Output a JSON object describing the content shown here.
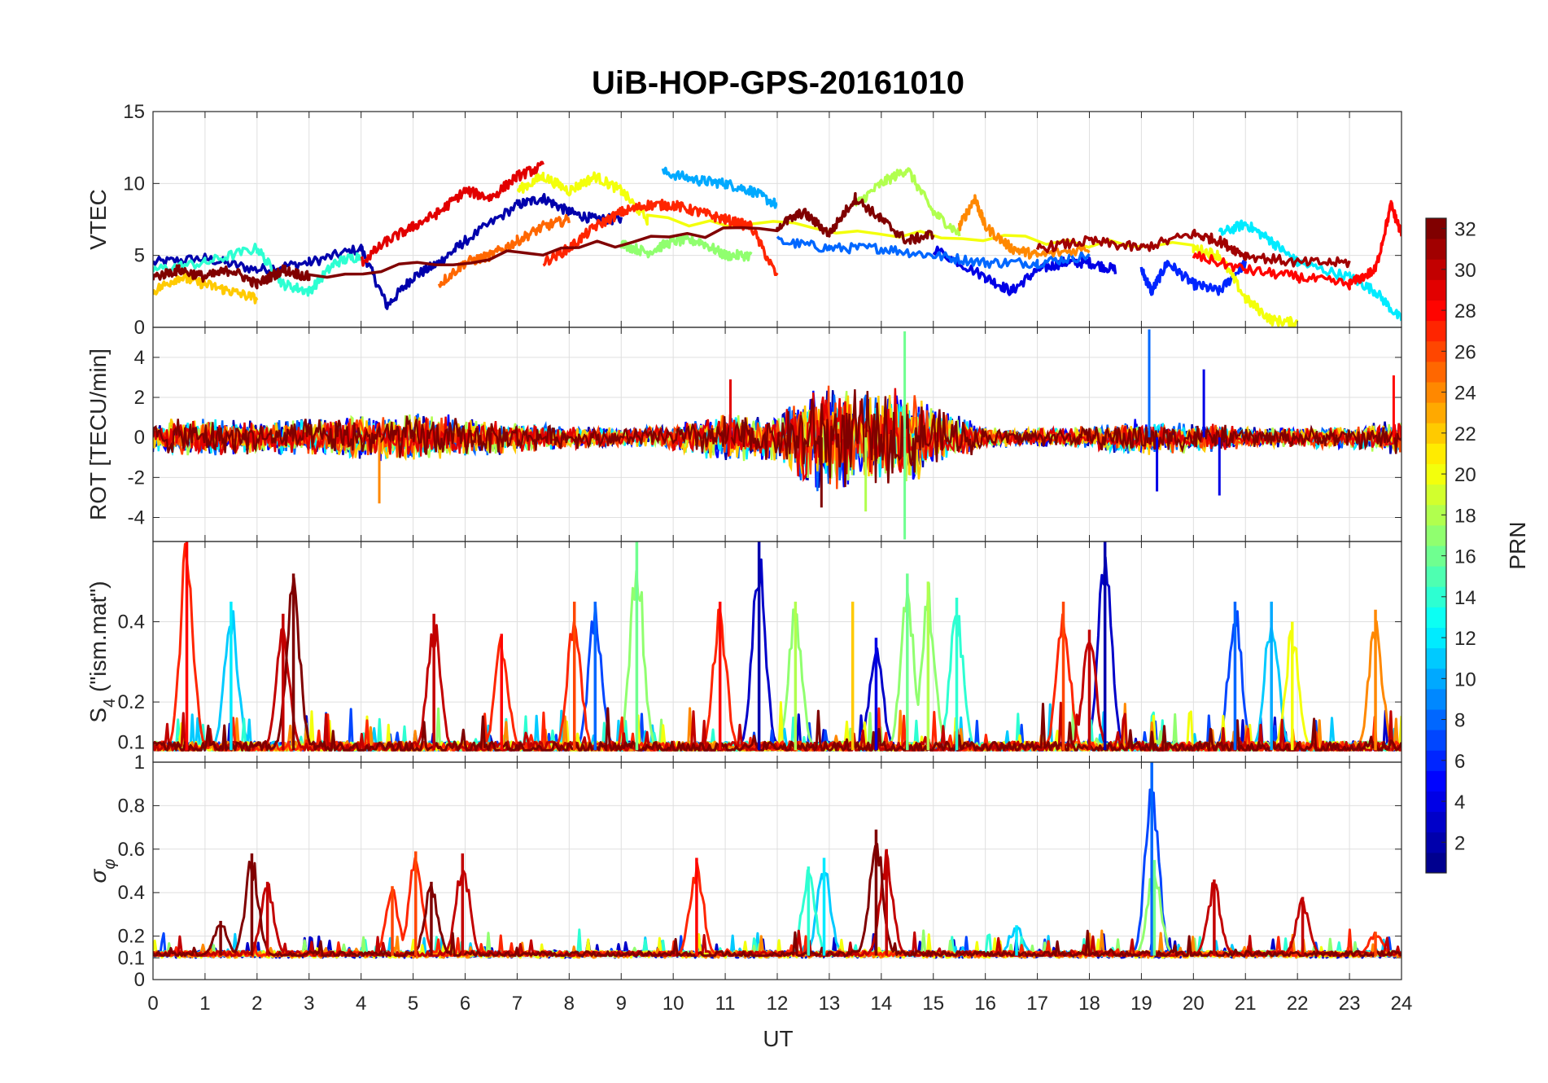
{
  "title": "UiB-HOP-GPS-20161010",
  "chart_data": [
    {
      "type": "line",
      "panel": "VTEC",
      "ylabel": "VTEC",
      "ylim": [
        0,
        15
      ],
      "yticks": [
        0,
        5,
        10,
        15
      ],
      "xlim": [
        0,
        24
      ],
      "series_note_prn_colored": true,
      "series": [
        {
          "prn": 2,
          "x": [
            0,
            1,
            2,
            3,
            4,
            4.5,
            5,
            5.5,
            6,
            7,
            7.5,
            8,
            8.5,
            9
          ],
          "y": [
            4.5,
            4.8,
            4.0,
            4.5,
            5.5,
            1.5,
            3.5,
            4.5,
            6.0,
            8.5,
            9.0,
            8.0,
            7.5,
            7.5
          ]
        },
        {
          "prn": 4,
          "x": [
            15,
            16,
            16.5,
            17,
            17.5,
            18,
            18.5
          ],
          "y": [
            5.5,
            3.5,
            2.5,
            4.0,
            4.5,
            4.5,
            4.0
          ]
        },
        {
          "prn": 6,
          "x": [
            19,
            19.2,
            19.5,
            20,
            20.5,
            21
          ],
          "y": [
            4.0,
            2.5,
            4.5,
            3.0,
            2.5,
            4.5
          ]
        },
        {
          "prn": 8,
          "x": [
            12,
            13,
            14,
            15,
            16,
            17,
            18
          ],
          "y": [
            6.0,
            5.5,
            5.5,
            5.0,
            4.5,
            4.5,
            5.0
          ]
        },
        {
          "prn": 10,
          "x": [
            9.8,
            10.5,
            11,
            11.5,
            12
          ],
          "y": [
            10.8,
            10.2,
            10.0,
            9.5,
            8.5
          ]
        },
        {
          "prn": 12,
          "x": [
            20.5,
            21,
            21.5,
            22,
            23,
            23.5,
            24
          ],
          "y": [
            6.5,
            7.2,
            6.0,
            4.5,
            3.5,
            2.5,
            0.5
          ]
        },
        {
          "prn": 14,
          "x": [
            0,
            1,
            2,
            2.5,
            3,
            3.5,
            4
          ],
          "y": [
            4.0,
            4.5,
            5.5,
            3.0,
            2.5,
            4.5,
            5.0
          ]
        },
        {
          "prn": 17,
          "x": [
            9,
            9.5,
            10,
            10.5,
            11,
            11.5
          ],
          "y": [
            5.8,
            5.2,
            6.0,
            6.0,
            5.0,
            5.0
          ]
        },
        {
          "prn": 18,
          "x": [
            13.5,
            14,
            14.5,
            15,
            15.5
          ],
          "y": [
            8.5,
            10.0,
            11.0,
            8.0,
            6.5
          ]
        },
        {
          "prn": 20,
          "x": [
            7,
            7.5,
            8,
            8.5,
            9,
            9.5,
            20,
            20.5,
            21,
            21.5,
            22
          ],
          "y": [
            9.5,
            10.5,
            9.5,
            10.5,
            9.5,
            7.5,
            5.5,
            5.0,
            2.0,
            0.5,
            0.3
          ]
        },
        {
          "prn": 22,
          "x": [
            0,
            0.5,
            1,
            1.5,
            2
          ],
          "y": [
            2.5,
            3.5,
            3.0,
            2.5,
            2.0
          ]
        },
        {
          "prn": 24,
          "x": [
            15.5,
            15.8,
            16,
            16.5,
            17,
            18
          ],
          "y": [
            7.0,
            9.0,
            7.0,
            5.5,
            5.0,
            5.5
          ]
        },
        {
          "prn": 25,
          "x": [
            5.5,
            6,
            6.5,
            7,
            7.5,
            8
          ],
          "y": [
            3.0,
            4.5,
            5.0,
            6.0,
            7.0,
            7.5
          ]
        },
        {
          "prn": 27,
          "x": [
            7.5,
            8,
            8.5,
            9,
            9.5,
            10,
            10.5,
            11,
            11.5,
            12
          ],
          "y": [
            4.5,
            5.5,
            7.0,
            8.0,
            8.5,
            8.5,
            8.0,
            7.5,
            7.0,
            3.5
          ]
        },
        {
          "prn": 28,
          "x": [
            20,
            21,
            22,
            23,
            23.5,
            23.8,
            24
          ],
          "y": [
            5.0,
            4.0,
            3.5,
            3.0,
            4.0,
            8.5,
            6.5
          ]
        },
        {
          "prn": 29,
          "x": [
            4,
            4.5,
            5,
            5.5,
            6,
            6.5,
            7,
            7.5
          ],
          "y": [
            4.5,
            6.0,
            7.0,
            8.0,
            9.5,
            9.0,
            10.5,
            11.2
          ]
        },
        {
          "prn": 31,
          "x": [
            17,
            18,
            19,
            20,
            20.5,
            21,
            22,
            23
          ],
          "y": [
            5.5,
            6.0,
            5.5,
            6.5,
            6.0,
            5.0,
            4.5,
            4.5
          ]
        },
        {
          "prn": 32,
          "x": [
            0,
            0.5,
            1,
            1.5,
            2,
            2.5,
            3,
            12,
            12.5,
            13,
            13.5,
            14,
            14.5,
            15
          ],
          "y": [
            3.5,
            4.0,
            3.5,
            4.0,
            3.0,
            4.0,
            3.5,
            7.0,
            8.0,
            6.5,
            9.0,
            7.5,
            6.0,
            6.5
          ]
        }
      ]
    },
    {
      "type": "line",
      "panel": "ROT",
      "ylabel": "ROT [TECU/min]",
      "ylim": [
        -5.2,
        5.5
      ],
      "yticks": [
        -4,
        -2,
        0,
        2,
        4
      ],
      "xlim": [
        0,
        24
      ],
      "envelope": {
        "x": [
          0,
          1,
          2,
          3,
          4,
          5,
          6,
          7,
          8,
          9,
          10,
          11,
          12,
          12.5,
          13,
          13.5,
          14,
          14.5,
          15,
          16,
          17,
          18,
          19,
          20,
          21,
          22,
          23,
          24
        ],
        "amp": [
          1.0,
          1.0,
          0.9,
          1.0,
          1.2,
          1.3,
          1.1,
          0.8,
          0.6,
          0.5,
          0.7,
          1.3,
          1.2,
          2.5,
          3.0,
          2.8,
          2.6,
          2.5,
          1.8,
          0.6,
          0.5,
          0.6,
          1.0,
          0.8,
          0.6,
          0.5,
          0.6,
          1.0
        ]
      },
      "spikes": [
        {
          "x": 19.15,
          "y": 5.4,
          "prn": 8
        },
        {
          "x": 14.45,
          "y": 5.3,
          "prn": 16
        },
        {
          "x": 14.45,
          "y": -5.1,
          "prn": 16
        },
        {
          "x": 4.35,
          "y": -3.3,
          "prn": 24
        },
        {
          "x": 12.85,
          "y": -3.5,
          "prn": 32
        },
        {
          "x": 13.7,
          "y": -3.7,
          "prn": 18
        },
        {
          "x": 19.3,
          "y": -2.7,
          "prn": 4
        },
        {
          "x": 20.5,
          "y": -2.9,
          "prn": 4
        },
        {
          "x": 23.85,
          "y": 3.1,
          "prn": 28
        },
        {
          "x": 20.2,
          "y": 3.4,
          "prn": 4
        },
        {
          "x": 11.1,
          "y": 2.9,
          "prn": 29
        }
      ]
    },
    {
      "type": "line",
      "panel": "S4",
      "ylabel": "S4 (\"ism.mat\")",
      "ylim": [
        0.05,
        0.6
      ],
      "yticks": [
        0.1,
        0.2,
        0.4
      ],
      "xlim": [
        0,
        24
      ],
      "baseline": 0.08,
      "peaks": [
        {
          "x": 0.65,
          "y": 0.62,
          "prn": 28
        },
        {
          "x": 1.5,
          "y": 0.45,
          "prn": 12
        },
        {
          "x": 2.7,
          "y": 0.52,
          "prn": 32
        },
        {
          "x": 2.5,
          "y": 0.42,
          "prn": 30
        },
        {
          "x": 5.4,
          "y": 0.42,
          "prn": 30
        },
        {
          "x": 6.7,
          "y": 0.37,
          "prn": 28
        },
        {
          "x": 8.1,
          "y": 0.45,
          "prn": 26
        },
        {
          "x": 8.5,
          "y": 0.45,
          "prn": 8
        },
        {
          "x": 9.3,
          "y": 0.6,
          "prn": 16
        },
        {
          "x": 10.9,
          "y": 0.45,
          "prn": 28
        },
        {
          "x": 11.65,
          "y": 0.6,
          "prn": 2
        },
        {
          "x": 12.35,
          "y": 0.45,
          "prn": 18
        },
        {
          "x": 13.45,
          "y": 0.45,
          "prn": 22
        },
        {
          "x": 13.9,
          "y": 0.36,
          "prn": 4
        },
        {
          "x": 14.5,
          "y": 0.52,
          "prn": 16
        },
        {
          "x": 14.9,
          "y": 0.5,
          "prn": 18
        },
        {
          "x": 15.45,
          "y": 0.46,
          "prn": 14
        },
        {
          "x": 17.5,
          "y": 0.45,
          "prn": 26
        },
        {
          "x": 18.3,
          "y": 0.6,
          "prn": 2
        },
        {
          "x": 18.0,
          "y": 0.38,
          "prn": 30
        },
        {
          "x": 20.8,
          "y": 0.45,
          "prn": 8
        },
        {
          "x": 21.5,
          "y": 0.45,
          "prn": 10
        },
        {
          "x": 21.9,
          "y": 0.4,
          "prn": 20
        },
        {
          "x": 23.5,
          "y": 0.43,
          "prn": 24
        }
      ]
    },
    {
      "type": "line",
      "panel": "sigma_phi",
      "ylabel": "σφ",
      "ylim": [
        0,
        1.0
      ],
      "yticks": [
        0,
        0.1,
        0.2,
        0.4,
        0.6,
        0.8,
        1
      ],
      "xlim": [
        0,
        24
      ],
      "baseline": 0.11,
      "peaks": [
        {
          "x": 1.3,
          "y": 0.27,
          "prn": 32
        },
        {
          "x": 1.9,
          "y": 0.58,
          "prn": 32
        },
        {
          "x": 2.2,
          "y": 0.45,
          "prn": 30
        },
        {
          "x": 4.6,
          "y": 0.43,
          "prn": 26
        },
        {
          "x": 5.05,
          "y": 0.59,
          "prn": 26
        },
        {
          "x": 5.35,
          "y": 0.45,
          "prn": 32
        },
        {
          "x": 5.95,
          "y": 0.58,
          "prn": 30
        },
        {
          "x": 10.45,
          "y": 0.56,
          "prn": 28
        },
        {
          "x": 12.6,
          "y": 0.52,
          "prn": 14
        },
        {
          "x": 12.9,
          "y": 0.56,
          "prn": 12
        },
        {
          "x": 13.9,
          "y": 0.69,
          "prn": 32
        },
        {
          "x": 14.1,
          "y": 0.6,
          "prn": 30
        },
        {
          "x": 16.6,
          "y": 0.25,
          "prn": 12
        },
        {
          "x": 19.2,
          "y": 1.0,
          "prn": 8
        },
        {
          "x": 19.25,
          "y": 0.55,
          "prn": 16
        },
        {
          "x": 20.4,
          "y": 0.46,
          "prn": 30
        },
        {
          "x": 22.1,
          "y": 0.38,
          "prn": 30
        },
        {
          "x": 23.5,
          "y": 0.22,
          "prn": 26
        }
      ]
    }
  ],
  "xaxis": {
    "label": "UT",
    "min": 0,
    "max": 24,
    "ticks": [
      "0",
      "1",
      "2",
      "3",
      "4",
      "5",
      "6",
      "7",
      "8",
      "9",
      "10",
      "11",
      "12",
      "13",
      "14",
      "15",
      "16",
      "17",
      "18",
      "19",
      "20",
      "21",
      "22",
      "23",
      "24"
    ]
  },
  "colorbar": {
    "label": "PRN",
    "min": 1,
    "max": 32,
    "ticks": [
      "2",
      "4",
      "6",
      "8",
      "10",
      "12",
      "14",
      "16",
      "18",
      "20",
      "22",
      "24",
      "26",
      "28",
      "30",
      "32"
    ],
    "colormap": "jet",
    "stops": [
      "#00008f",
      "#0000ff",
      "#0080ff",
      "#00ffff",
      "#80ff80",
      "#ffff00",
      "#ff8000",
      "#ff0000",
      "#800000"
    ]
  },
  "panel_labels": {
    "vtec": "VTEC",
    "rot": "ROT [TECU/min]",
    "s4_main": "S",
    "s4_sub": "4",
    "s4_tail": " (\"ism.mat\")",
    "sigma_main": "σ",
    "sigma_sub": "φ"
  }
}
